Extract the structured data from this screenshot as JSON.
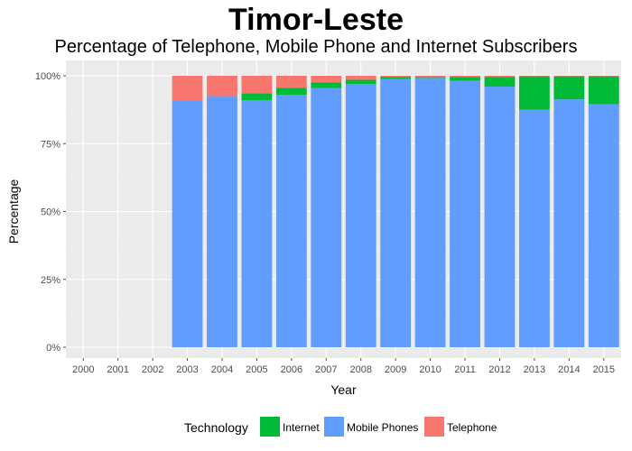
{
  "chart_data": {
    "type": "bar",
    "stacked": true,
    "percent": true,
    "title": "Timor-Leste",
    "subtitle": "Percentage of Telephone, Mobile Phone and Internet Subscribers",
    "xlabel": "Year",
    "ylabel": "Percentage",
    "ylim": [
      0,
      100
    ],
    "yticks": [
      "0%",
      "25%",
      "50%",
      "75%",
      "100%"
    ],
    "grid": true,
    "legend": {
      "title": "Technology",
      "placement": "bottom"
    },
    "categories": [
      "2000",
      "2001",
      "2002",
      "2003",
      "2004",
      "2005",
      "2006",
      "2007",
      "2008",
      "2009",
      "2010",
      "2011",
      "2012",
      "2013",
      "2014",
      "2015"
    ],
    "series": [
      {
        "name": "Mobile Phones",
        "color": "#619CFF",
        "values": [
          null,
          null,
          null,
          91.0,
          92.5,
          91.0,
          93.0,
          95.5,
          97.0,
          98.8,
          99.2,
          98.2,
          96.0,
          87.5,
          91.3,
          89.5
        ]
      },
      {
        "name": "Internet",
        "color": "#00BA38",
        "values": [
          null,
          null,
          null,
          0.0,
          0.0,
          2.5,
          2.5,
          2.0,
          1.5,
          0.7,
          0.4,
          1.3,
          3.5,
          12.3,
          8.5,
          10.3
        ]
      },
      {
        "name": "Telephone",
        "color": "#F8766D",
        "values": [
          null,
          null,
          null,
          9.0,
          7.5,
          6.5,
          4.5,
          2.5,
          1.5,
          0.5,
          0.4,
          0.5,
          0.5,
          0.2,
          0.2,
          0.2
        ]
      }
    ],
    "legend_order": [
      "Internet",
      "Mobile Phones",
      "Telephone"
    ]
  }
}
